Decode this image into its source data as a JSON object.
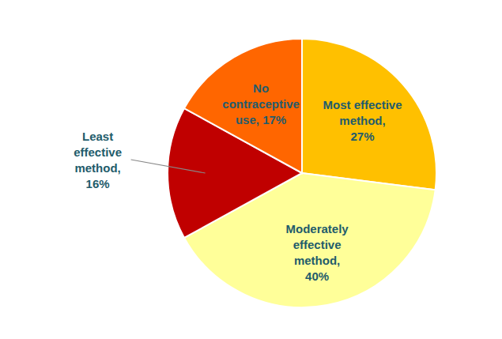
{
  "chart_data": {
    "type": "pie",
    "categories": [
      "Most effective\nmethod,\n27%",
      "Moderately\neffective\nmethod,\n40%",
      "Least\neffective\nmethod,\n16%",
      "No\ncontraceptive\nuse, 17%"
    ],
    "values": [
      27,
      40,
      16,
      17
    ],
    "colors": [
      "#FFC000",
      "#FFFF99",
      "#C00000",
      "#FF6600"
    ]
  }
}
